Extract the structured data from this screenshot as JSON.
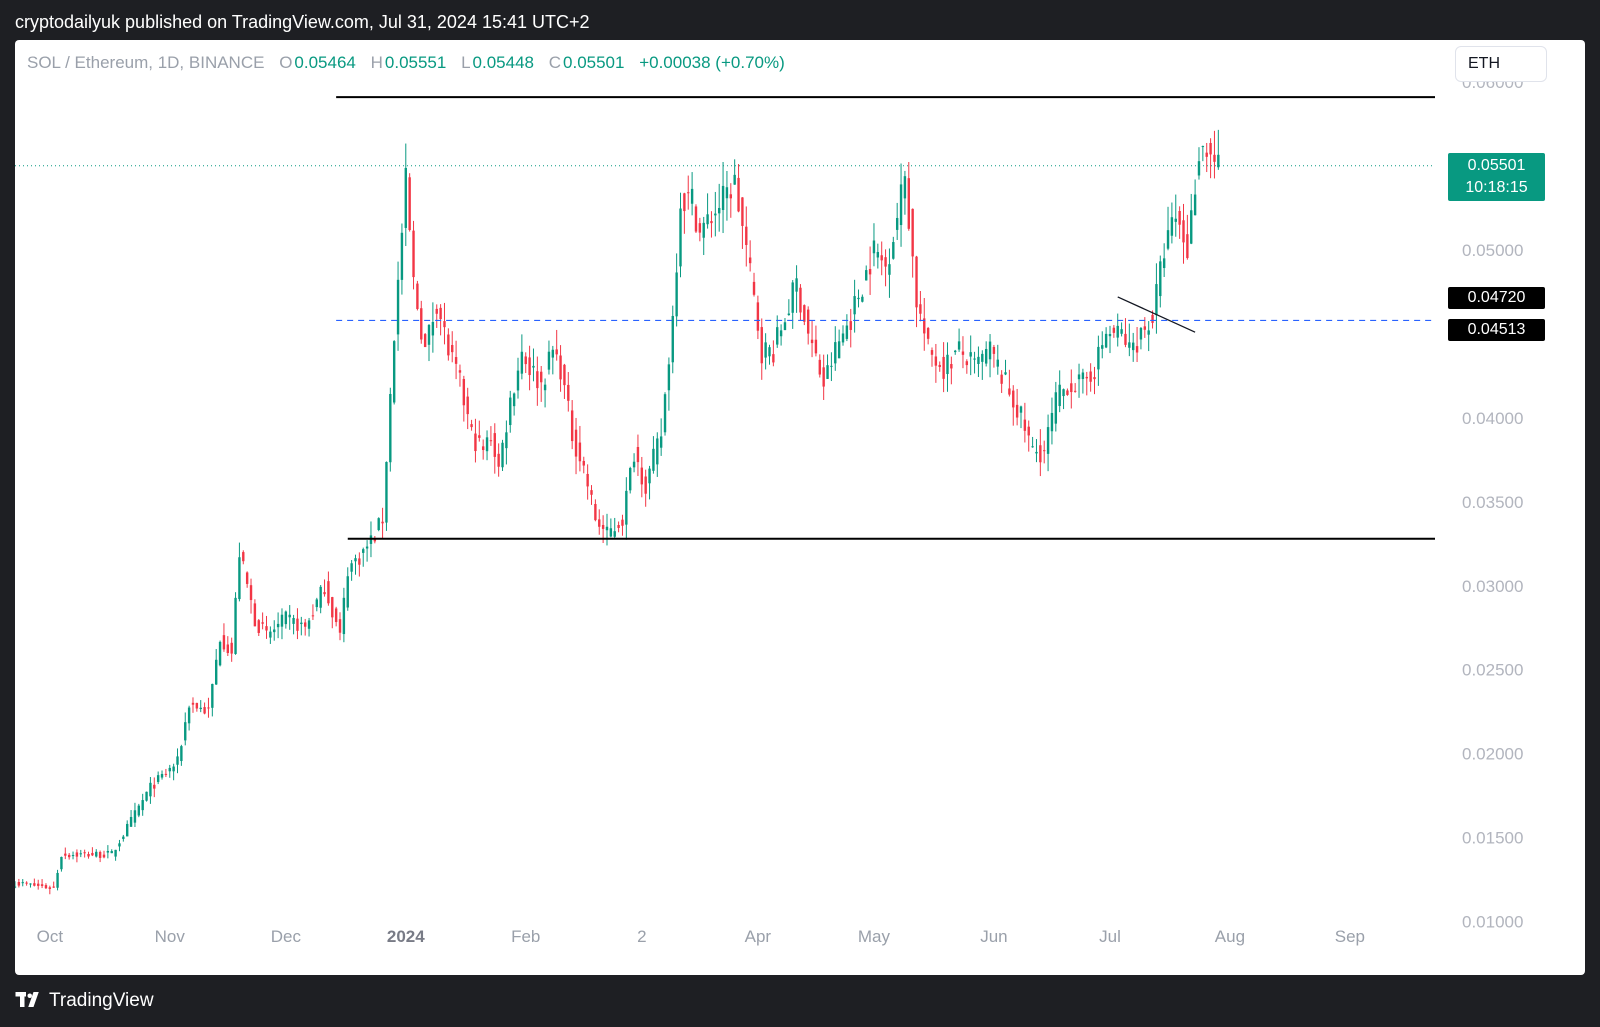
{
  "header": {
    "publisher": "cryptodailyuk published on TradingView.com, Jul 31, 2024 15:41 UTC+2"
  },
  "legend": {
    "symbol": "SOL / Ethereum, 1D, BINANCE",
    "open_label": "O",
    "open": "0.05464",
    "high_label": "H",
    "high": "0.05551",
    "low_label": "L",
    "low": "0.05448",
    "close_label": "C",
    "close": "0.05501",
    "change": "+0.00038 (+0.70%)"
  },
  "currency_button": "ETH",
  "price_tags": {
    "last": "0.05501",
    "countdown": "10:18:15",
    "level_upper": "0.04720",
    "level_lower": "0.04513"
  },
  "footer": {
    "brand": "TradingView"
  },
  "colors": {
    "up": "#089981",
    "down": "#f23645",
    "last_price": "#089981",
    "level_line": "#2962ff",
    "page_bg": "#1e1f23"
  },
  "chart_data": {
    "type": "candlestick",
    "y_axis": {
      "ylim": [
        0.0095,
        0.0625
      ],
      "ticks": [
        "0.06000",
        "0.05500",
        "0.05000",
        "0.04500",
        "0.04000",
        "0.03500",
        "0.03000",
        "0.02500",
        "0.02000",
        "0.01500",
        "0.01000"
      ],
      "tick_values": [
        0.06,
        0.055,
        0.05,
        0.045,
        0.04,
        0.035,
        0.03,
        0.025,
        0.02,
        0.015,
        0.01
      ]
    },
    "x_axis": {
      "ticks": [
        "Oct",
        "Nov",
        "Dec",
        "2024",
        "Feb",
        "2",
        "Apr",
        "May",
        "Jun",
        "Jul",
        "Aug",
        "Sep"
      ],
      "tick_days": [
        9,
        40,
        70,
        101,
        132,
        162,
        192,
        222,
        253,
        283,
        314,
        345
      ],
      "xlim_days": [
        0,
        367
      ]
    },
    "series_close_anchors": [
      [
        0,
        0.0123
      ],
      [
        10,
        0.012
      ],
      [
        12,
        0.014
      ],
      [
        25,
        0.014
      ],
      [
        30,
        0.016
      ],
      [
        35,
        0.018
      ],
      [
        42,
        0.0195
      ],
      [
        45,
        0.023
      ],
      [
        50,
        0.0225
      ],
      [
        53,
        0.027
      ],
      [
        56,
        0.026
      ],
      [
        58,
        0.032
      ],
      [
        62,
        0.028
      ],
      [
        65,
        0.027
      ],
      [
        70,
        0.028
      ],
      [
        75,
        0.0275
      ],
      [
        78,
        0.029
      ],
      [
        80,
        0.03
      ],
      [
        84,
        0.027
      ],
      [
        86,
        0.031
      ],
      [
        90,
        0.032
      ],
      [
        93,
        0.033
      ],
      [
        95,
        0.034
      ],
      [
        98,
        0.045
      ],
      [
        101,
        0.054
      ],
      [
        103,
        0.048
      ],
      [
        106,
        0.044
      ],
      [
        109,
        0.047
      ],
      [
        112,
        0.044
      ],
      [
        115,
        0.042
      ],
      [
        118,
        0.039
      ],
      [
        121,
        0.038
      ],
      [
        123,
        0.039
      ],
      [
        125,
        0.037
      ],
      [
        128,
        0.041
      ],
      [
        131,
        0.044
      ],
      [
        133,
        0.043
      ],
      [
        136,
        0.042
      ],
      [
        139,
        0.044
      ],
      [
        141,
        0.043
      ],
      [
        144,
        0.039
      ],
      [
        147,
        0.037
      ],
      [
        150,
        0.034
      ],
      [
        153,
        0.033
      ],
      [
        157,
        0.034
      ],
      [
        160,
        0.038
      ],
      [
        163,
        0.036
      ],
      [
        167,
        0.039
      ],
      [
        170,
        0.046
      ],
      [
        172,
        0.053
      ],
      [
        175,
        0.053
      ],
      [
        177,
        0.051
      ],
      [
        180,
        0.052
      ],
      [
        183,
        0.053
      ],
      [
        186,
        0.054
      ],
      [
        189,
        0.05
      ],
      [
        193,
        0.044
      ],
      [
        196,
        0.044
      ],
      [
        199,
        0.046
      ],
      [
        202,
        0.048
      ],
      [
        205,
        0.045
      ],
      [
        209,
        0.042
      ],
      [
        212,
        0.044
      ],
      [
        216,
        0.046
      ],
      [
        219,
        0.048
      ],
      [
        222,
        0.05
      ],
      [
        225,
        0.049
      ],
      [
        228,
        0.052
      ],
      [
        230,
        0.0545
      ],
      [
        233,
        0.047
      ],
      [
        236,
        0.044
      ],
      [
        240,
        0.043
      ],
      [
        244,
        0.044
      ],
      [
        248,
        0.043
      ],
      [
        252,
        0.044
      ],
      [
        256,
        0.042
      ],
      [
        260,
        0.04
      ],
      [
        263,
        0.038
      ],
      [
        266,
        0.038
      ],
      [
        269,
        0.041
      ],
      [
        272,
        0.042
      ],
      [
        276,
        0.042
      ],
      [
        279,
        0.043
      ],
      [
        282,
        0.045
      ],
      [
        286,
        0.045
      ],
      [
        288,
        0.044
      ],
      [
        291,
        0.045
      ],
      [
        294,
        0.046
      ],
      [
        297,
        0.05
      ],
      [
        300,
        0.052
      ],
      [
        303,
        0.05
      ],
      [
        306,
        0.056
      ],
      [
        308,
        0.056
      ],
      [
        311,
        0.055
      ]
    ],
    "levels": {
      "resistance": 0.0591,
      "support": 0.0328,
      "mid_dashed": 0.0458,
      "last_price": 0.05501
    },
    "resistance_span_days": [
      83,
      367
    ],
    "support_span_days": [
      86,
      367
    ],
    "mid_span_days": [
      83,
      367
    ],
    "trendline": {
      "start": [
        285,
        0.0472
      ],
      "end": [
        305,
        0.0451
      ]
    }
  }
}
